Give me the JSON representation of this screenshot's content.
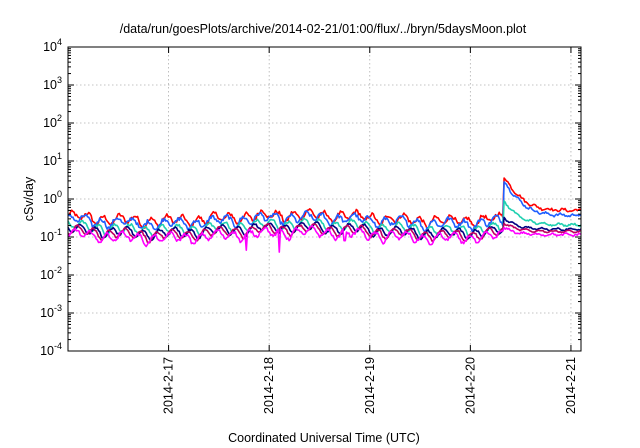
{
  "chart_data": {
    "type": "line",
    "title": "/data/run/goesPlots/archive/2014-02-21/01:00/flux/../bryn/5daysMoon.plot",
    "xlabel": "Coordinated Universal Time (UTC)",
    "ylabel": "cSv/day",
    "yscale": "log",
    "ylim": [
      0.0001,
      10000
    ],
    "xlim": [
      0,
      5.1
    ],
    "grid": true,
    "y_ticks": [
      {
        "value": 0.0001,
        "base": "10",
        "exp": "-4"
      },
      {
        "value": 0.001,
        "base": "10",
        "exp": "-3"
      },
      {
        "value": 0.01,
        "base": "10",
        "exp": "-2"
      },
      {
        "value": 0.1,
        "base": "10",
        "exp": "-1"
      },
      {
        "value": 1,
        "base": "10",
        "exp": "0"
      },
      {
        "value": 10,
        "base": "10",
        "exp": "1"
      },
      {
        "value": 100,
        "base": "10",
        "exp": "2"
      },
      {
        "value": 1000,
        "base": "10",
        "exp": "3"
      },
      {
        "value": 10000,
        "base": "10",
        "exp": "4"
      }
    ],
    "x_ticks": [
      {
        "value": 1,
        "label": "2014-2-17"
      },
      {
        "value": 2,
        "label": "2014-2-18"
      },
      {
        "value": 3,
        "label": "2014-2-19"
      },
      {
        "value": 4,
        "label": "2014-2-20"
      },
      {
        "value": 5,
        "label": "2014-2-21"
      }
    ],
    "series": [
      {
        "color": "#ff0000",
        "base": 0.33,
        "event_peak": 3.8,
        "event_after": 0.5,
        "noise": 0.12,
        "dips": []
      },
      {
        "color": "#1f5fff",
        "base": 0.28,
        "event_peak": 3.0,
        "event_after": 0.37,
        "noise": 0.12,
        "dips": []
      },
      {
        "color": "#20d0b0",
        "base": 0.19,
        "event_peak": 0.9,
        "event_after": 0.21,
        "noise": 0.08,
        "dips": []
      },
      {
        "color": "#000080",
        "base": 0.155,
        "event_peak": 0.33,
        "event_after": 0.16,
        "noise": 0.06,
        "dips": []
      },
      {
        "color": "#c00060",
        "base": 0.14,
        "event_peak": 0.24,
        "event_after": 0.14,
        "noise": 0.06,
        "dips": []
      },
      {
        "color": "#ff00ff",
        "base": 0.115,
        "event_peak": 0.18,
        "event_after": 0.115,
        "noise": 0.09,
        "dips": [
          {
            "x": 1.77,
            "v": 0.045
          },
          {
            "x": 2.1,
            "v": 0.04
          },
          {
            "x": 0.63,
            "v": 0.08
          },
          {
            "x": 2.75,
            "v": 0.08
          }
        ]
      }
    ],
    "event": {
      "start": 4.33,
      "decay": 0.1
    }
  }
}
